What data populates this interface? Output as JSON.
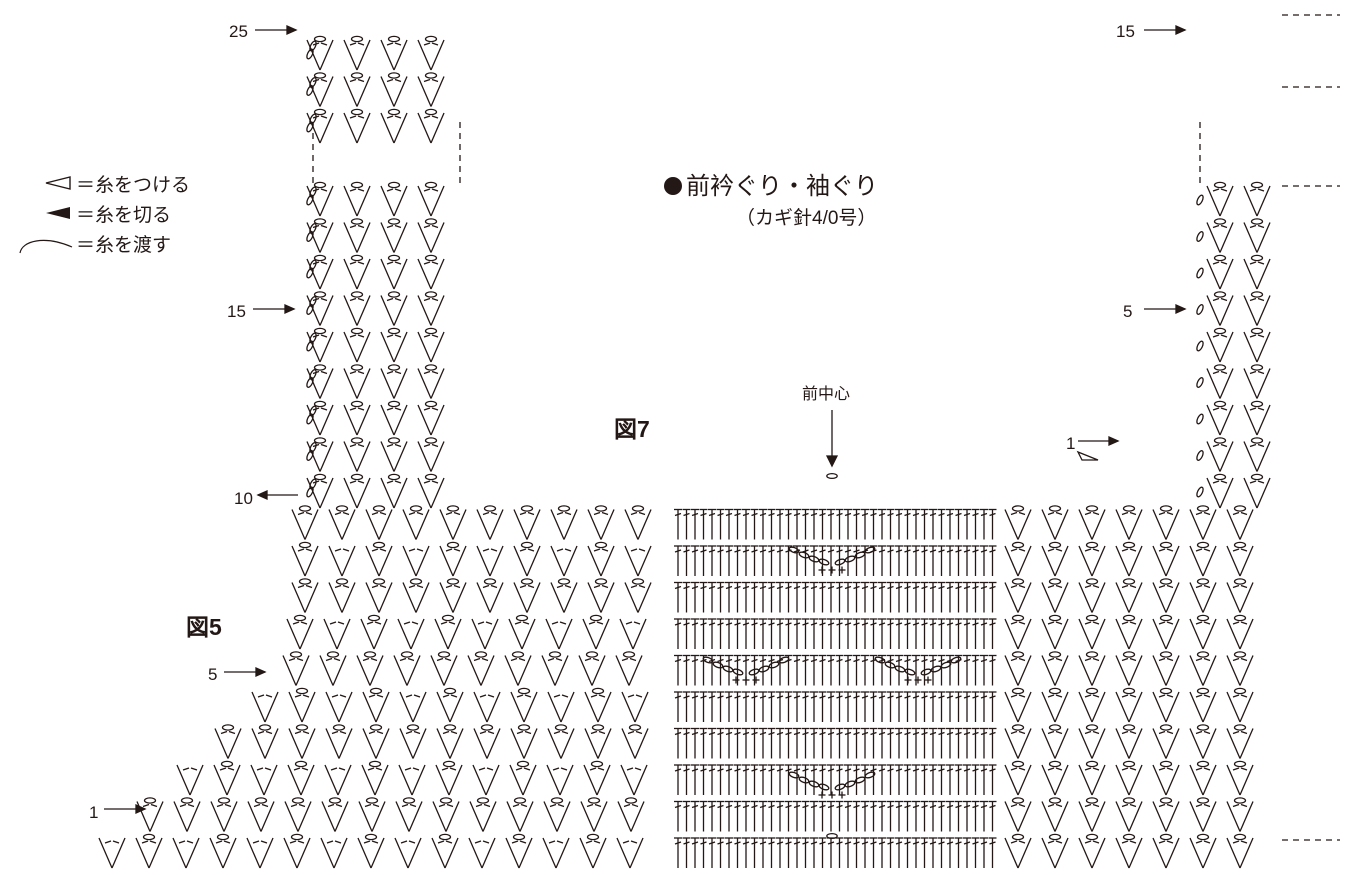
{
  "title": "前衿ぐり・袖ぐり",
  "subtitle": "（カギ針4/0号）",
  "legend": [
    {
      "symbol": "open-triangle-icon",
      "text": "＝糸をつける"
    },
    {
      "symbol": "filled-triangle-icon",
      "text": "＝糸を切る"
    },
    {
      "symbol": "curve-icon",
      "text": "＝糸を渡す"
    }
  ],
  "figure_labels": {
    "fig7": "図7",
    "fig5": "図5",
    "front_center": "前中心"
  },
  "row_markers": {
    "left_25": "25",
    "left_15": "15",
    "left_10": "10",
    "left_5": "5",
    "left_1": "1",
    "right_15": "15",
    "right_5": "5",
    "right_1": "1"
  },
  "colors": {
    "ink": "#231815"
  }
}
